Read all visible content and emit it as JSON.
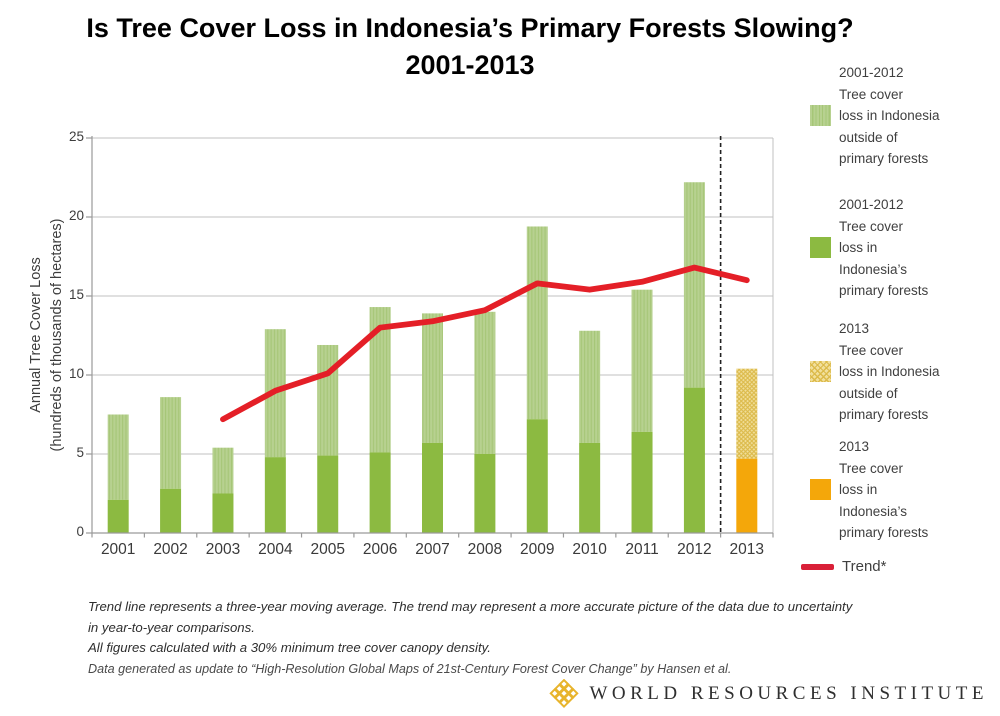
{
  "title": {
    "line1": "Is Tree Cover Loss in Indonesia’s Primary Forests Slowing?",
    "line2": "2001-2013"
  },
  "chart_data": {
    "type": "bar",
    "stacked": true,
    "title": "Is Tree Cover Loss in Indonesia’s Primary Forests Slowing? 2001-2013",
    "ylabel": "Annual Tree Cover Loss\n(hundreds of thousands of hectares)",
    "xlabel": "",
    "ylim": [
      0,
      25
    ],
    "yticks": [
      0,
      5,
      10,
      15,
      20,
      25
    ],
    "grid": "horizontal",
    "legend_position": "right",
    "categories": [
      "2001",
      "2002",
      "2003",
      "2004",
      "2005",
      "2006",
      "2007",
      "2008",
      "2009",
      "2010",
      "2011",
      "2012",
      "2013"
    ],
    "series": [
      {
        "name": "Tree cover loss in Indonesia's primary forests",
        "values": [
          2.1,
          2.8,
          2.5,
          4.8,
          4.9,
          5.1,
          5.7,
          5.0,
          7.2,
          5.7,
          6.4,
          9.2,
          4.7
        ]
      },
      {
        "name": "Tree cover loss in Indonesia outside of primary forests",
        "values": [
          5.4,
          5.8,
          2.9,
          8.1,
          7.0,
          9.2,
          8.2,
          9.0,
          12.2,
          7.1,
          9.0,
          13.0,
          5.7
        ]
      }
    ],
    "trend": {
      "name": "Trend*",
      "note": "three-year moving average",
      "categories": [
        "2003",
        "2004",
        "2005",
        "2006",
        "2007",
        "2008",
        "2009",
        "2010",
        "2011",
        "2012",
        "2013"
      ],
      "values": [
        7.2,
        9.0,
        10.1,
        13.0,
        13.4,
        14.1,
        15.8,
        15.4,
        15.9,
        16.8,
        16.0
      ]
    },
    "separator_before_category": "2013"
  },
  "legend": {
    "items": [
      {
        "label": "2001-2012\nTree cover\nloss in Indonesia\noutside of\nprimary forests",
        "swatch": "light-green-striped"
      },
      {
        "label": "2001-2012\nTree cover\nloss in\nIndonesia’s\nprimary forests",
        "swatch": "dark-green"
      },
      {
        "label": "2013\nTree cover\nloss in Indonesia\noutside of\nprimary forests",
        "swatch": "yellow-hatched"
      },
      {
        "label": "2013\nTree cover\nloss in\nIndonesia’s\nprimary forests",
        "swatch": "orange"
      },
      {
        "label": "Trend*",
        "swatch": "red-line"
      }
    ]
  },
  "footnotes": [
    "Trend line represents a three-year moving average. The trend may represent a more accurate picture of the data due to uncertainty\nin year-to-year comparisons.",
    "All figures calculated with a 30%  minimum tree cover canopy density.",
    "Data generated as update to “High-Resolution Global Maps of 21st-Century Forest Cover Change” by Hansen  et al."
  ],
  "logo": {
    "text": "WORLD RESOURCES INSTITUTE"
  },
  "colors": {
    "outside_green": "#b7d190",
    "outside_green_stripe": "#a6c677",
    "primary_green": "#8cba41",
    "outside_2013_bg": "#f1df9b",
    "outside_2013_hatch": "#dcba4a",
    "primary_2013_orange": "#f4a70a",
    "trend_red": "#e41f27",
    "gridline": "#c0c0c0",
    "axis": "#9a9a9a",
    "separator": "#222222",
    "logo_gold": "#e8b42c",
    "text": "#3f3f3f"
  }
}
